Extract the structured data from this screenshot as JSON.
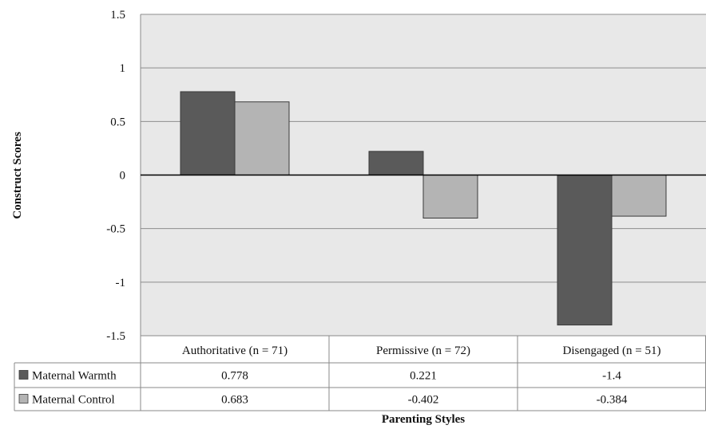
{
  "chart_data": {
    "type": "bar",
    "xlabel": "Parenting Styles",
    "ylabel": "Construct Scores",
    "ylim": [
      -1.5,
      1.5
    ],
    "yticks": [
      "1.5",
      "1",
      "0.5",
      "0",
      "-0.5",
      "-1",
      "-1.5"
    ],
    "ytick_values": [
      1.5,
      1,
      0.5,
      0,
      -0.5,
      -1,
      -1.5
    ],
    "grid": true,
    "legend": "data-table",
    "categories": [
      "Authoritative (n = 71)",
      "Permissive (n = 72)",
      "Disengaged (n = 51)"
    ],
    "series": [
      {
        "name": "Maternal Warmth",
        "values": [
          0.778,
          0.221,
          -1.4
        ],
        "labels": [
          "0.778",
          "0.221",
          "-1.4"
        ],
        "color": "#5a5a5a"
      },
      {
        "name": "Maternal Control",
        "values": [
          0.683,
          -0.402,
          -0.384
        ],
        "labels": [
          "0.683",
          "-0.402",
          "-0.384"
        ],
        "color": "#b4b4b4"
      }
    ]
  },
  "colors": {
    "plot_background": "#e8e8e8",
    "gridline": "#8c8c8c",
    "zero_line": "#000000",
    "border": "#8a8a8a"
  }
}
